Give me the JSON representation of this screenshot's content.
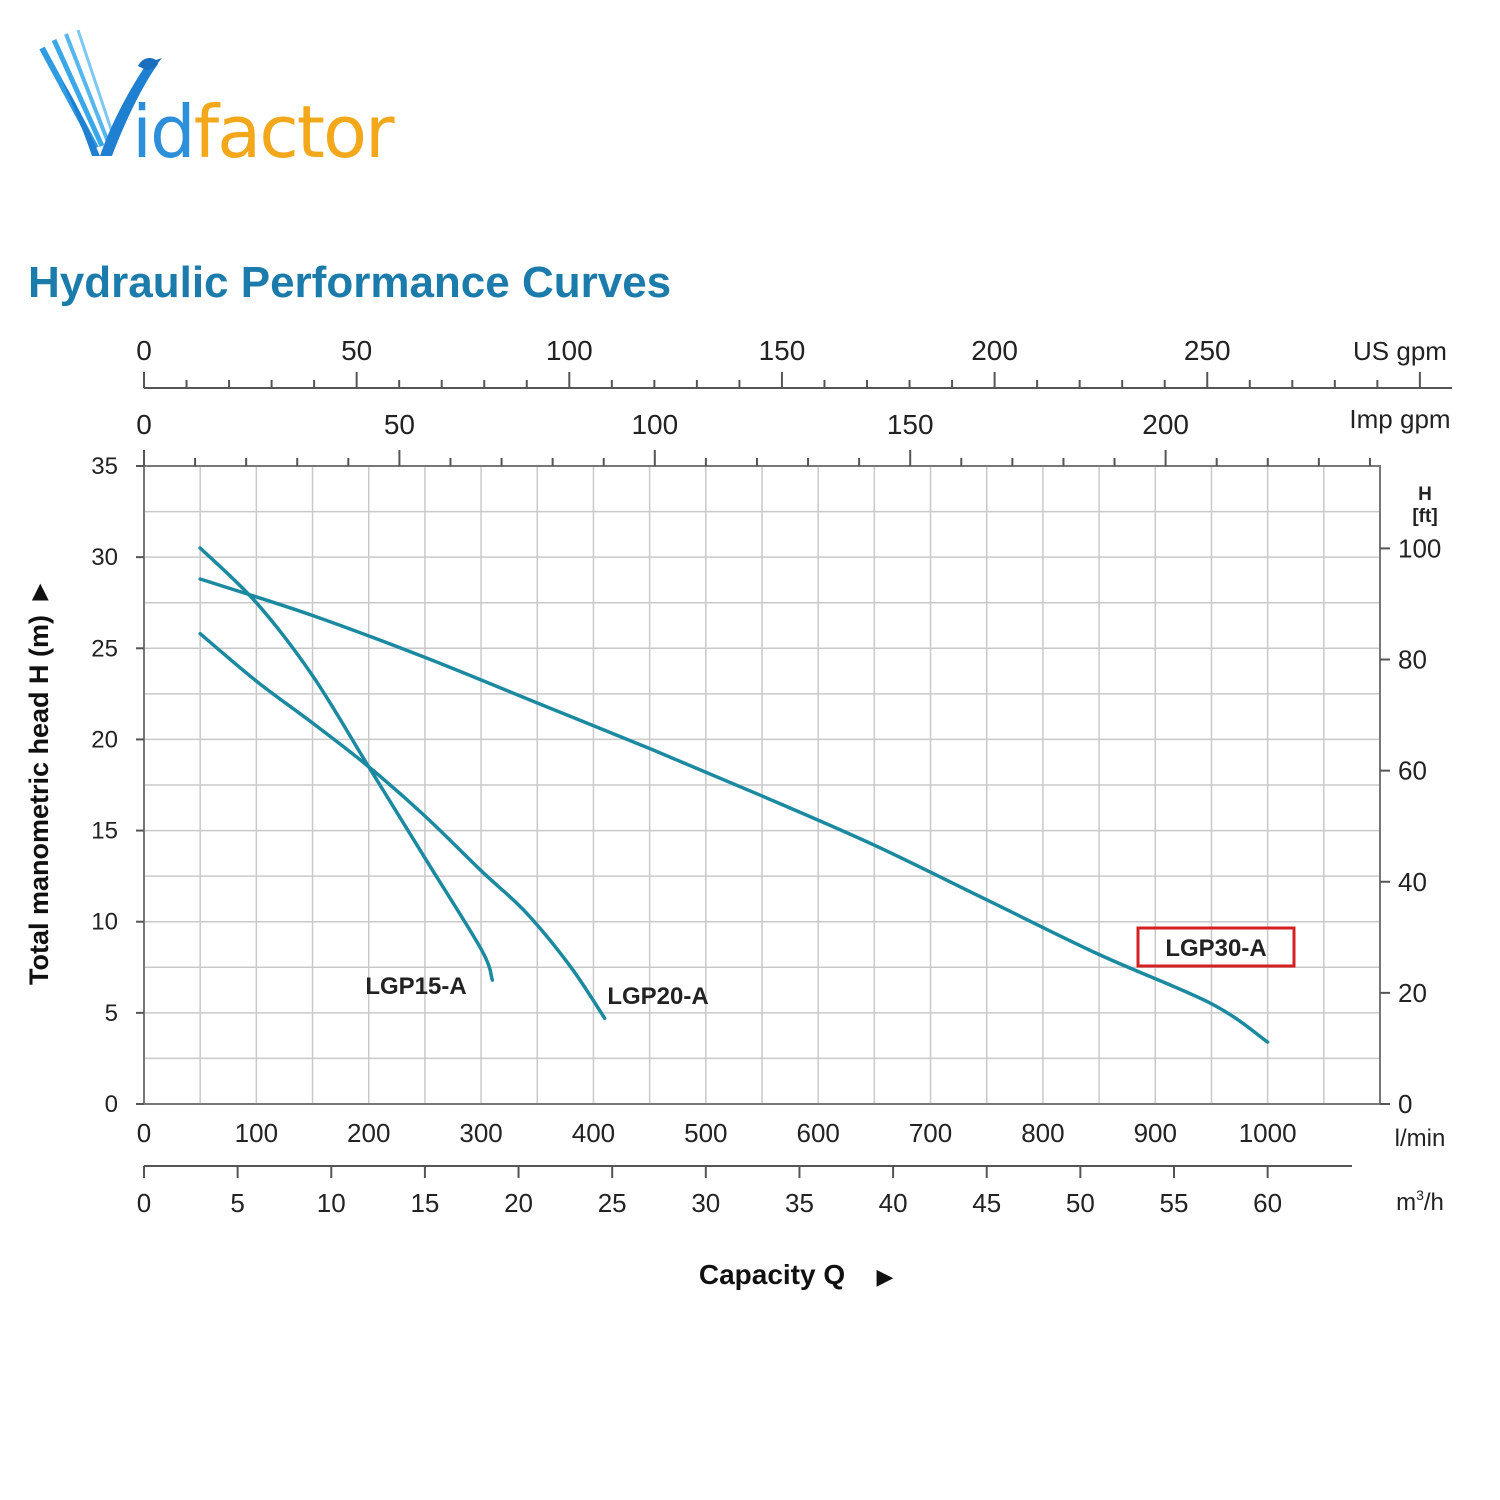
{
  "logo": {
    "text_prefix": "V",
    "text_i": "id",
    "text_rest": "factor",
    "colors": {
      "blue": "#2b8fd9",
      "yellow": "#f2a81a"
    }
  },
  "chart_data": {
    "type": "line",
    "title": "Hydraulic Performance Curves",
    "xlabel": "Capacity Q",
    "ylabel": "Total manometric head H (m)",
    "right_label_top": "H",
    "right_label_bottom": "[ft]",
    "xlim": [
      0,
      1100
    ],
    "ylim": [
      0,
      35
    ],
    "grid": true,
    "x_ticks_lmin": [
      0,
      100,
      200,
      300,
      400,
      500,
      600,
      700,
      800,
      900,
      1000
    ],
    "x_unit_lmin": "l/min",
    "y_ticks_m": [
      0,
      5,
      10,
      15,
      20,
      25,
      30,
      35
    ],
    "y_ticks_ft": [
      0,
      20,
      40,
      60,
      80,
      100
    ],
    "us_gpm_ticks": [
      0,
      50,
      100,
      150,
      200,
      250
    ],
    "us_gpm_unit": "US gpm",
    "imp_gpm_ticks": [
      0,
      50,
      100,
      150,
      200
    ],
    "imp_gpm_unit": "Imp gpm",
    "m3h_ticks": [
      0,
      5,
      10,
      15,
      20,
      25,
      30,
      35,
      40,
      45,
      50,
      55,
      60
    ],
    "m3h_unit_base": "m",
    "m3h_unit_sup": "3",
    "m3h_unit_tail": "/h",
    "series": [
      {
        "name": "LGP15-A",
        "x": [
          50,
          100,
          150,
          200,
          250,
          300,
          310
        ],
        "y": [
          30.5,
          27.5,
          23.5,
          18.5,
          13.5,
          8.5,
          6.8
        ]
      },
      {
        "name": "LGP20-A",
        "x": [
          50,
          100,
          150,
          200,
          250,
          300,
          340,
          380,
          410
        ],
        "y": [
          25.8,
          23.2,
          20.9,
          18.5,
          15.8,
          12.8,
          10.5,
          7.5,
          4.7
        ]
      },
      {
        "name": "LGP30-A",
        "x": [
          50,
          150,
          250,
          350,
          450,
          550,
          650,
          750,
          850,
          950,
          1000
        ],
        "y": [
          28.8,
          26.8,
          24.5,
          22.0,
          19.5,
          16.9,
          14.2,
          11.2,
          8.2,
          5.5,
          3.4
        ]
      }
    ],
    "highlight": "LGP30-A",
    "series_color": "#1b8aa0",
    "highlight_color": "#d42020"
  }
}
